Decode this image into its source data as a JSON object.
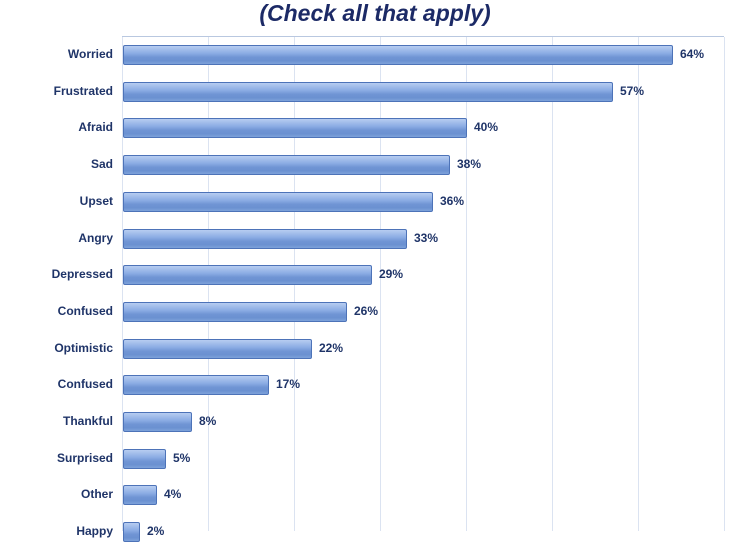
{
  "header": {
    "title": "(Check all that apply)"
  },
  "colors": {
    "title_text": "#1c2a66",
    "label_text": "#1f3468",
    "bar_fill_light": "#b7cdf1",
    "bar_fill_dark": "#6b91d1",
    "bar_border": "#4d73b8",
    "gridline": "#dbe3f1",
    "plot_top_border": "#b9c8e0",
    "background": "#ffffff"
  },
  "chart_data": {
    "type": "bar",
    "orientation": "horizontal",
    "title": "(Check all that apply)",
    "categories": [
      "Worried",
      "Frustrated",
      "Afraid",
      "Sad",
      "Upset",
      "Angry",
      "Depressed",
      "Confused",
      "Optimistic",
      "Confused",
      "Thankful",
      "Surprised",
      "Other",
      "Happy"
    ],
    "values": [
      64,
      57,
      40,
      38,
      36,
      33,
      29,
      26,
      22,
      17,
      8,
      5,
      4,
      2
    ],
    "value_labels": [
      "64%",
      "57%",
      "40%",
      "38%",
      "36%",
      "33%",
      "29%",
      "26%",
      "22%",
      "17%",
      "8%",
      "5%",
      "4%",
      "2%"
    ],
    "xlabel": "",
    "ylabel": "",
    "xlim": [
      0,
      70
    ],
    "gridline_interval": 10,
    "grid": true,
    "legend": false,
    "data_labels": "outside-end",
    "note": "bottom row partially cut off by image edge"
  }
}
